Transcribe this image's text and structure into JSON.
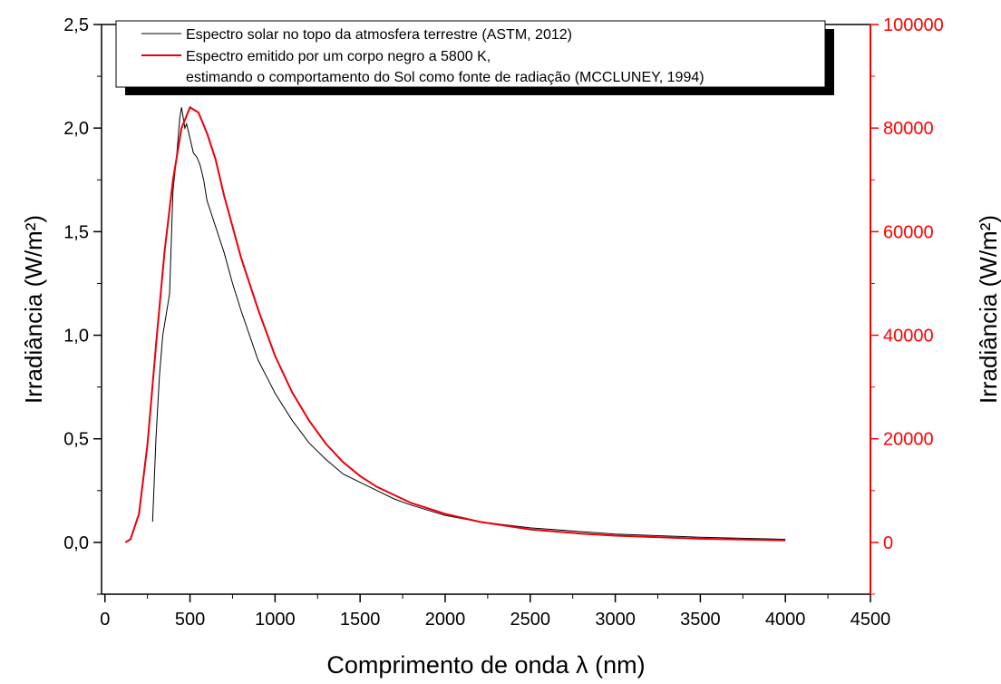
{
  "chart_data": {
    "type": "line",
    "xlabel": "Comprimento de onda λ (nm)",
    "xlim": [
      -20,
      4500
    ],
    "xticks": [
      "0",
      "500",
      "1000",
      "1500",
      "2000",
      "2500",
      "3000",
      "3500",
      "4000",
      "4500"
    ],
    "ylabel_left": "Irradiância (W/m²)",
    "ylim_left": [
      -0.25,
      2.5
    ],
    "yticks_left": [
      "0,0",
      "0,5",
      "1,0",
      "1,5",
      "2,0",
      "2,5"
    ],
    "ylabel_right": "Irradiância (W/m²)",
    "ylim_right": [
      -10000,
      100000
    ],
    "yticks_right": [
      "0",
      "20000",
      "40000",
      "60000",
      "80000",
      "100000"
    ],
    "right_axis_color": "#ff0000",
    "legend_placement": "top",
    "series": [
      {
        "name": "Espectro solar no topo da atmosfera terrestre (ASTM, 2012)",
        "axis": "left",
        "color": "#000000",
        "x": [
          280,
          300,
          320,
          340,
          360,
          380,
          400,
          420,
          440,
          450,
          460,
          470,
          480,
          500,
          520,
          540,
          560,
          580,
          600,
          620,
          640,
          660,
          680,
          700,
          750,
          800,
          850,
          900,
          950,
          1000,
          1100,
          1200,
          1300,
          1400,
          1500,
          1600,
          1700,
          1800,
          2000,
          2200,
          2500,
          3000,
          3500,
          4000
        ],
        "y": [
          0.1,
          0.5,
          0.8,
          1.0,
          1.1,
          1.2,
          1.7,
          1.85,
          2.05,
          2.1,
          2.05,
          2.0,
          2.02,
          1.95,
          1.88,
          1.86,
          1.82,
          1.75,
          1.65,
          1.6,
          1.55,
          1.5,
          1.45,
          1.4,
          1.25,
          1.12,
          1.0,
          0.88,
          0.8,
          0.72,
          0.59,
          0.48,
          0.4,
          0.33,
          0.29,
          0.25,
          0.21,
          0.18,
          0.13,
          0.1,
          0.07,
          0.04,
          0.025,
          0.015
        ]
      },
      {
        "name": "Espectro emitido por um corpo negro a 5800 K,",
        "name_line2": "estimando o comportamento do Sol como fonte de radiação (MCCLUNEY, 1994)",
        "axis": "right",
        "color": "#e8000b",
        "x": [
          120,
          150,
          200,
          250,
          300,
          350,
          400,
          450,
          500,
          550,
          600,
          650,
          700,
          800,
          900,
          1000,
          1100,
          1200,
          1300,
          1400,
          1500,
          1600,
          1800,
          2000,
          2200,
          2500,
          2800,
          3000,
          3500,
          4000
        ],
        "y": [
          0,
          600,
          5500,
          19000,
          38000,
          56000,
          70000,
          80000,
          84000,
          83000,
          79000,
          74000,
          67000,
          55000,
          45000,
          36000,
          29000,
          23500,
          19000,
          15500,
          12800,
          10700,
          7600,
          5500,
          4000,
          2500,
          1700,
          1300,
          700,
          400
        ]
      }
    ]
  }
}
